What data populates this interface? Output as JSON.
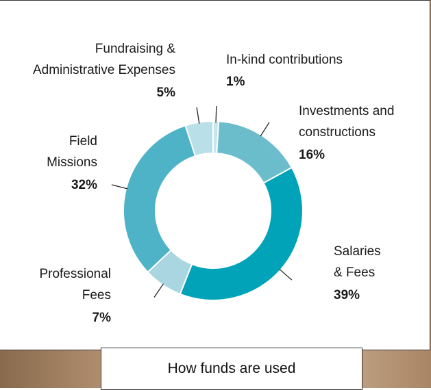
{
  "chart_data": {
    "type": "donut",
    "title": "How funds are used",
    "categories": [
      [
        "In-kind contributions"
      ],
      [
        "Investments and",
        "constructions"
      ],
      [
        "Salaries",
        "& Fees"
      ],
      [
        "Professional",
        "Fees"
      ],
      [
        "Field",
        "Missions"
      ],
      [
        "Fundraising &",
        "Administrative Expenses"
      ]
    ],
    "values": [
      1,
      16,
      39,
      7,
      32,
      5
    ],
    "value_labels": [
      "1%",
      "16%",
      "39%",
      "7%",
      "32%",
      "5%"
    ],
    "colors": [
      "#c6e5ec",
      "#6bbdcc",
      "#00a3b8",
      "#a9d6e1",
      "#4fb3c7",
      "#b9dfe8"
    ]
  }
}
